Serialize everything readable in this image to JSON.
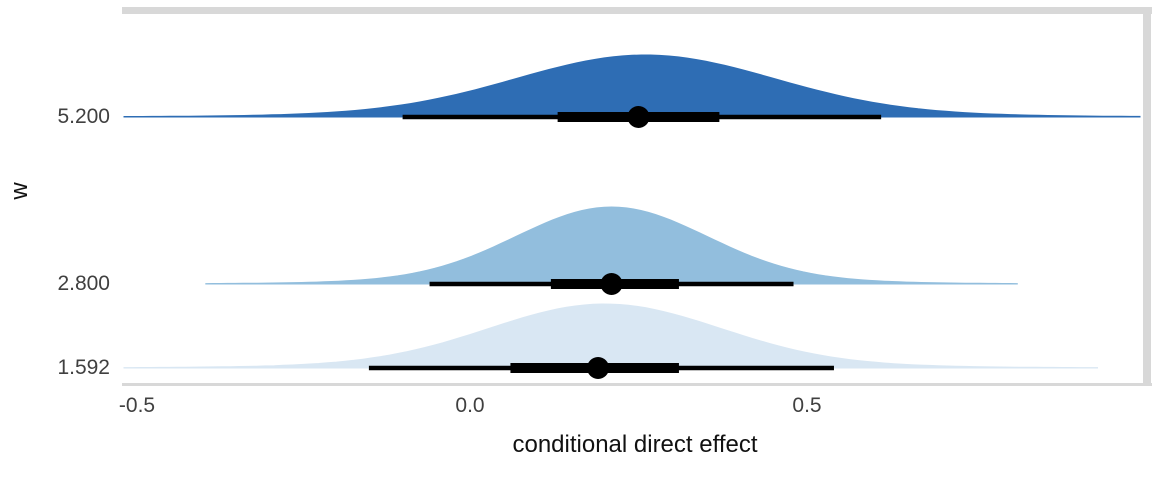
{
  "chart_data": {
    "type": "area",
    "variant": "halfeye-density-with-point-intervals",
    "title": "",
    "xlabel": "conditional direct effect",
    "ylabel": "w",
    "xlim": [
      -0.52,
      1.0
    ],
    "x_ticks": [
      -0.5,
      0.0,
      0.5
    ],
    "x_tick_labels": [
      "-0.5",
      "0.0",
      "0.5"
    ],
    "y_categories_top_to_bottom": [
      "5.200",
      "2.800",
      "1.592"
    ],
    "grid": "off",
    "legend": "none",
    "background": "#ffffff",
    "panel_border_color": "#d8d8d8",
    "interval_color": "#000000",
    "series": [
      {
        "label": "5.200",
        "w": 5.2,
        "color": "#2e6db4",
        "mode": 0.26,
        "sd": 0.19,
        "median": 0.25,
        "interval_66": [
          0.13,
          0.37
        ],
        "interval_95": [
          -0.1,
          0.61
        ]
      },
      {
        "label": "2.800",
        "w": 2.8,
        "color": "#92bedd",
        "mode": 0.21,
        "sd": 0.14,
        "median": 0.21,
        "interval_66": [
          0.12,
          0.31
        ],
        "interval_95": [
          -0.06,
          0.48
        ]
      },
      {
        "label": "1.592",
        "w": 1.592,
        "color": "#d9e7f3",
        "mode": 0.2,
        "sd": 0.17,
        "median": 0.19,
        "interval_66": [
          0.06,
          0.31
        ],
        "interval_95": [
          -0.15,
          0.54
        ]
      }
    ]
  }
}
